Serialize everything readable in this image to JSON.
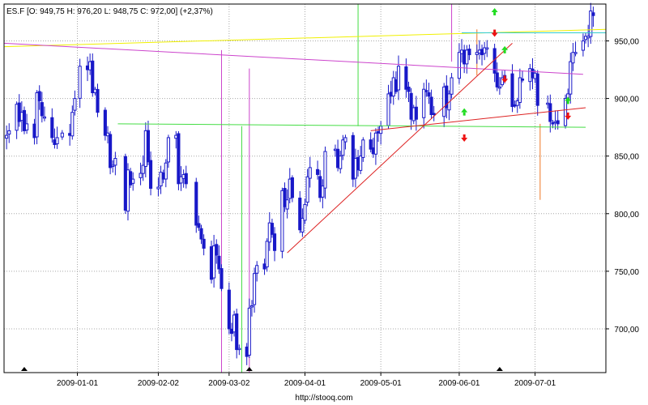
{
  "header": {
    "quote": "ES.F [O: 949,75  H: 976,20  L: 948,75  C: 972,00] (+2,37%)"
  },
  "footer": {
    "source": "http://stooq.com"
  },
  "colors": {
    "candle": "#1818c8",
    "grid": "#a8a8a8",
    "frame": "#000000",
    "green_line": "#44dd44",
    "magenta_line": "#cc44cc",
    "yellow_line": "#f0f000",
    "red_line": "#dd2222",
    "orange_line": "#ee7722",
    "cyan_line": "#33cccc",
    "arrow_up": "#22dd22",
    "arrow_down": "#ee1111"
  },
  "chart_data": {
    "type": "candlestick",
    "instrument": "ES.F",
    "x_ticks": [
      "2009-01-01",
      "2009-02-02",
      "2009-03-02",
      "2009-04-01",
      "2009-05-01",
      "2009-06-01",
      "2009-07-01"
    ],
    "x_tick_dates": [
      "2009-01-01",
      "2009-02-02",
      "2009-03-02",
      "2009-04-01",
      "2009-05-01",
      "2009-06-01",
      "2009-07-01"
    ],
    "x_range": [
      "2008-12-03",
      "2009-07-29"
    ],
    "y_ticks": [
      700,
      750,
      800,
      850,
      900,
      950
    ],
    "y_tick_labels": [
      "700,00",
      "750,00",
      "800,00",
      "850,00",
      "900,00",
      "950,00"
    ],
    "ylim": [
      662,
      982
    ],
    "grid": true,
    "close_series": [
      [
        "2008-12-04",
        868
      ],
      [
        "2008-12-05",
        872
      ],
      [
        "2008-12-08",
        895
      ],
      [
        "2008-12-09",
        880
      ],
      [
        "2008-12-10",
        888
      ],
      [
        "2008-12-11",
        872
      ],
      [
        "2008-12-12",
        878
      ],
      [
        "2008-12-15",
        866
      ],
      [
        "2008-12-16",
        905
      ],
      [
        "2008-12-17",
        898
      ],
      [
        "2008-12-18",
        885
      ],
      [
        "2008-12-19",
        884
      ],
      [
        "2008-12-22",
        866
      ],
      [
        "2008-12-23",
        860
      ],
      [
        "2008-12-24",
        866
      ],
      [
        "2008-12-26",
        870
      ],
      [
        "2008-12-29",
        868
      ],
      [
        "2008-12-30",
        888
      ],
      [
        "2008-12-31",
        900
      ],
      [
        "2009-01-02",
        928
      ],
      [
        "2009-01-05",
        925
      ],
      [
        "2009-01-06",
        932
      ],
      [
        "2009-01-07",
        905
      ],
      [
        "2009-01-08",
        908
      ],
      [
        "2009-01-09",
        888
      ],
      [
        "2009-01-12",
        868
      ],
      [
        "2009-01-13",
        870
      ],
      [
        "2009-01-14",
        840
      ],
      [
        "2009-01-15",
        842
      ],
      [
        "2009-01-16",
        848
      ],
      [
        "2009-01-20",
        803
      ],
      [
        "2009-01-21",
        838
      ],
      [
        "2009-01-22",
        825
      ],
      [
        "2009-01-23",
        830
      ],
      [
        "2009-01-26",
        835
      ],
      [
        "2009-01-27",
        842
      ],
      [
        "2009-01-28",
        872
      ],
      [
        "2009-01-29",
        845
      ],
      [
        "2009-01-30",
        822
      ],
      [
        "2009-02-02",
        823
      ],
      [
        "2009-02-03",
        836
      ],
      [
        "2009-02-04",
        830
      ],
      [
        "2009-02-05",
        844
      ],
      [
        "2009-02-06",
        866
      ],
      [
        "2009-02-09",
        868
      ],
      [
        "2009-02-10",
        826
      ],
      [
        "2009-02-11",
        832
      ],
      [
        "2009-02-12",
        834
      ],
      [
        "2009-02-13",
        826
      ],
      [
        "2009-02-17",
        790
      ],
      [
        "2009-02-18",
        788
      ],
      [
        "2009-02-19",
        778
      ],
      [
        "2009-02-20",
        770
      ],
      [
        "2009-02-23",
        743
      ],
      [
        "2009-02-24",
        772
      ],
      [
        "2009-02-25",
        764
      ],
      [
        "2009-02-26",
        752
      ],
      [
        "2009-02-27",
        735
      ],
      [
        "2009-03-02",
        700
      ],
      [
        "2009-03-03",
        696
      ],
      [
        "2009-03-04",
        712
      ],
      [
        "2009-03-05",
        682
      ],
      [
        "2009-03-06",
        683
      ],
      [
        "2009-03-09",
        676
      ],
      [
        "2009-03-10",
        718
      ],
      [
        "2009-03-11",
        720
      ],
      [
        "2009-03-12",
        748
      ],
      [
        "2009-03-13",
        755
      ],
      [
        "2009-03-16",
        752
      ],
      [
        "2009-03-17",
        776
      ],
      [
        "2009-03-18",
        792
      ],
      [
        "2009-03-19",
        782
      ],
      [
        "2009-03-20",
        768
      ],
      [
        "2009-03-23",
        820
      ],
      [
        "2009-03-24",
        806
      ],
      [
        "2009-03-25",
        812
      ],
      [
        "2009-03-26",
        830
      ],
      [
        "2009-03-27",
        814
      ],
      [
        "2009-03-30",
        786
      ],
      [
        "2009-03-31",
        796
      ],
      [
        "2009-04-01",
        808
      ],
      [
        "2009-04-02",
        832
      ],
      [
        "2009-04-03",
        840
      ],
      [
        "2009-04-06",
        834
      ],
      [
        "2009-04-07",
        814
      ],
      [
        "2009-04-08",
        824
      ],
      [
        "2009-04-09",
        854
      ],
      [
        "2009-04-13",
        856
      ],
      [
        "2009-04-14",
        840
      ],
      [
        "2009-04-15",
        850
      ],
      [
        "2009-04-16",
        864
      ],
      [
        "2009-04-17",
        866
      ],
      [
        "2009-04-20",
        830
      ],
      [
        "2009-04-21",
        848
      ],
      [
        "2009-04-22",
        838
      ],
      [
        "2009-04-23",
        850
      ],
      [
        "2009-04-24",
        864
      ],
      [
        "2009-04-27",
        856
      ],
      [
        "2009-04-28",
        852
      ],
      [
        "2009-04-29",
        870
      ],
      [
        "2009-04-30",
        870
      ],
      [
        "2009-05-01",
        876
      ],
      [
        "2009-05-04",
        904
      ],
      [
        "2009-05-05",
        902
      ],
      [
        "2009-05-06",
        918
      ],
      [
        "2009-05-07",
        906
      ],
      [
        "2009-05-08",
        928
      ],
      [
        "2009-05-11",
        908
      ],
      [
        "2009-05-12",
        906
      ],
      [
        "2009-05-13",
        882
      ],
      [
        "2009-05-14",
        892
      ],
      [
        "2009-05-15",
        882
      ],
      [
        "2009-05-18",
        908
      ],
      [
        "2009-05-19",
        906
      ],
      [
        "2009-05-20",
        902
      ],
      [
        "2009-05-21",
        886
      ],
      [
        "2009-05-22",
        886
      ],
      [
        "2009-05-26",
        910
      ],
      [
        "2009-05-27",
        892
      ],
      [
        "2009-05-28",
        904
      ],
      [
        "2009-05-29",
        918
      ],
      [
        "2009-06-01",
        940
      ],
      [
        "2009-06-02",
        942
      ],
      [
        "2009-06-03",
        930
      ],
      [
        "2009-06-04",
        942
      ],
      [
        "2009-06-05",
        938
      ],
      [
        "2009-06-08",
        940
      ],
      [
        "2009-06-09",
        942
      ],
      [
        "2009-06-10",
        938
      ],
      [
        "2009-06-11",
        944
      ],
      [
        "2009-06-12",
        944
      ],
      [
        "2009-06-15",
        922
      ],
      [
        "2009-06-16",
        910
      ],
      [
        "2009-06-17",
        910
      ],
      [
        "2009-06-18",
        918
      ],
      [
        "2009-06-19",
        920
      ],
      [
        "2009-06-22",
        893
      ],
      [
        "2009-06-23",
        894
      ],
      [
        "2009-06-24",
        898
      ],
      [
        "2009-06-25",
        918
      ],
      [
        "2009-06-26",
        916
      ],
      [
        "2009-06-29",
        926
      ],
      [
        "2009-06-30",
        918
      ],
      [
        "2009-07-01",
        922
      ],
      [
        "2009-07-02",
        894
      ],
      [
        "2009-07-06",
        896
      ],
      [
        "2009-07-07",
        880
      ],
      [
        "2009-07-08",
        878
      ],
      [
        "2009-07-09",
        880
      ],
      [
        "2009-07-10",
        878
      ],
      [
        "2009-07-13",
        900
      ],
      [
        "2009-07-14",
        904
      ],
      [
        "2009-07-15",
        932
      ],
      [
        "2009-07-16",
        940
      ],
      [
        "2009-07-17",
        940
      ],
      [
        "2009-07-20",
        950
      ],
      [
        "2009-07-21",
        954
      ],
      [
        "2009-07-22",
        954
      ],
      [
        "2009-07-23",
        976
      ],
      [
        "2009-07-24",
        972
      ]
    ],
    "candle_width_days": 1.0,
    "trend_lines": [
      {
        "color": "yellow",
        "from": [
          "2008-12-03",
          945
        ],
        "to": [
          "2009-07-29",
          960
        ]
      },
      {
        "color": "magenta",
        "from": [
          "2008-12-03",
          948
        ],
        "to": [
          "2009-07-20",
          921
        ]
      },
      {
        "color": "green",
        "from": [
          "2009-01-17",
          878
        ],
        "to": [
          "2009-07-21",
          875
        ]
      },
      {
        "color": "red",
        "from": [
          "2009-03-25",
          766
        ],
        "to": [
          "2009-06-22",
          948
        ]
      },
      {
        "color": "red",
        "from": [
          "2009-04-27",
          872
        ],
        "to": [
          "2009-07-21",
          892
        ]
      },
      {
        "color": "cyan",
        "from": [
          "2009-06-02",
          957
        ],
        "to": [
          "2009-07-29",
          957
        ]
      }
    ],
    "vertical_lines": [
      {
        "color": "green",
        "date": "2009-03-07",
        "from": 662,
        "to": 876
      },
      {
        "color": "magenta",
        "date": "2009-02-27",
        "from": 662,
        "to": 942
      },
      {
        "color": "magenta",
        "date": "2009-03-10",
        "from": 662,
        "to": 926
      },
      {
        "color": "green",
        "date": "2009-04-22",
        "from": 876,
        "to": 982
      },
      {
        "color": "magenta",
        "date": "2009-05-29",
        "from": 932,
        "to": 982
      },
      {
        "color": "orange",
        "date": "2009-06-08",
        "from": 920,
        "to": 960
      },
      {
        "color": "orange",
        "date": "2009-07-03",
        "from": 812,
        "to": 878
      }
    ],
    "signals": [
      {
        "dir": "up",
        "date": "2009-06-15",
        "value": 975
      },
      {
        "dir": "down",
        "date": "2009-06-15",
        "value": 957
      },
      {
        "dir": "up",
        "date": "2009-06-19",
        "value": 942
      },
      {
        "dir": "down",
        "date": "2009-06-19",
        "value": 917
      },
      {
        "dir": "up",
        "date": "2009-06-03",
        "value": 888
      },
      {
        "dir": "down",
        "date": "2009-06-03",
        "value": 866
      },
      {
        "dir": "up",
        "date": "2009-07-14",
        "value": 898
      },
      {
        "dir": "down",
        "date": "2009-07-14",
        "value": 885
      }
    ],
    "bottom_markers": [
      "2008-12-11",
      "2009-03-10",
      "2009-06-17"
    ]
  }
}
